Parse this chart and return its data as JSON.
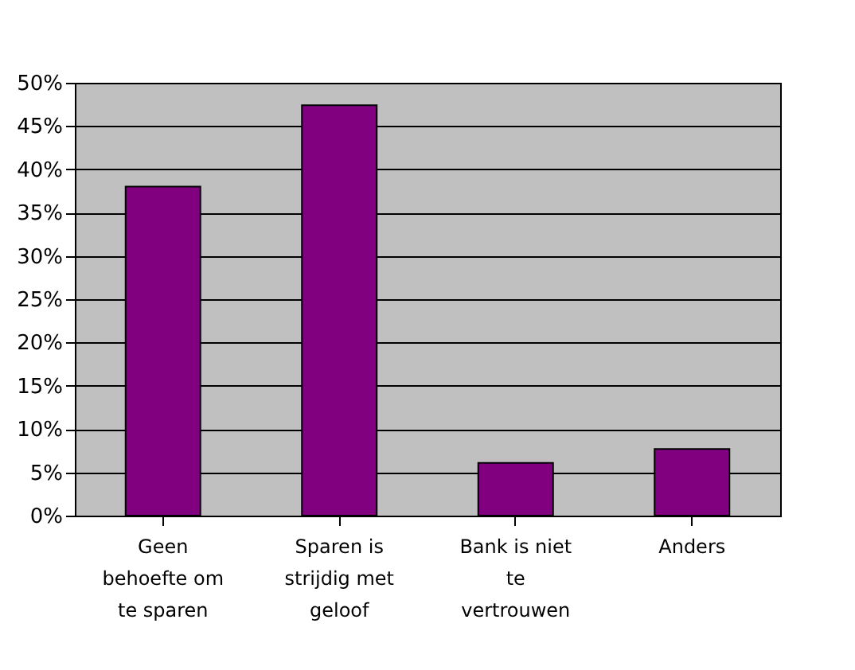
{
  "chart_data": {
    "type": "bar",
    "categories": [
      "Geen\nbehoefte om\nte sparen",
      "Sparen is\nstrijdig met\ngeloof",
      "Bank is niet\nte\nvertrouwen",
      "Anders"
    ],
    "values": [
      38,
      47.4,
      6.1,
      7.7
    ],
    "color": "#800080",
    "ylim": [
      0,
      50
    ],
    "yticks": [
      {
        "value": 0,
        "label": "0%"
      },
      {
        "value": 5,
        "label": "5%"
      },
      {
        "value": 10,
        "label": "10%"
      },
      {
        "value": 15,
        "label": "15%"
      },
      {
        "value": 20,
        "label": "20%"
      },
      {
        "value": 25,
        "label": "25%"
      },
      {
        "value": 30,
        "label": "30%"
      },
      {
        "value": 35,
        "label": "35%"
      },
      {
        "value": 40,
        "label": "40%"
      },
      {
        "value": 45,
        "label": "45%"
      },
      {
        "value": 50,
        "label": "50%"
      }
    ],
    "grid": "y"
  }
}
